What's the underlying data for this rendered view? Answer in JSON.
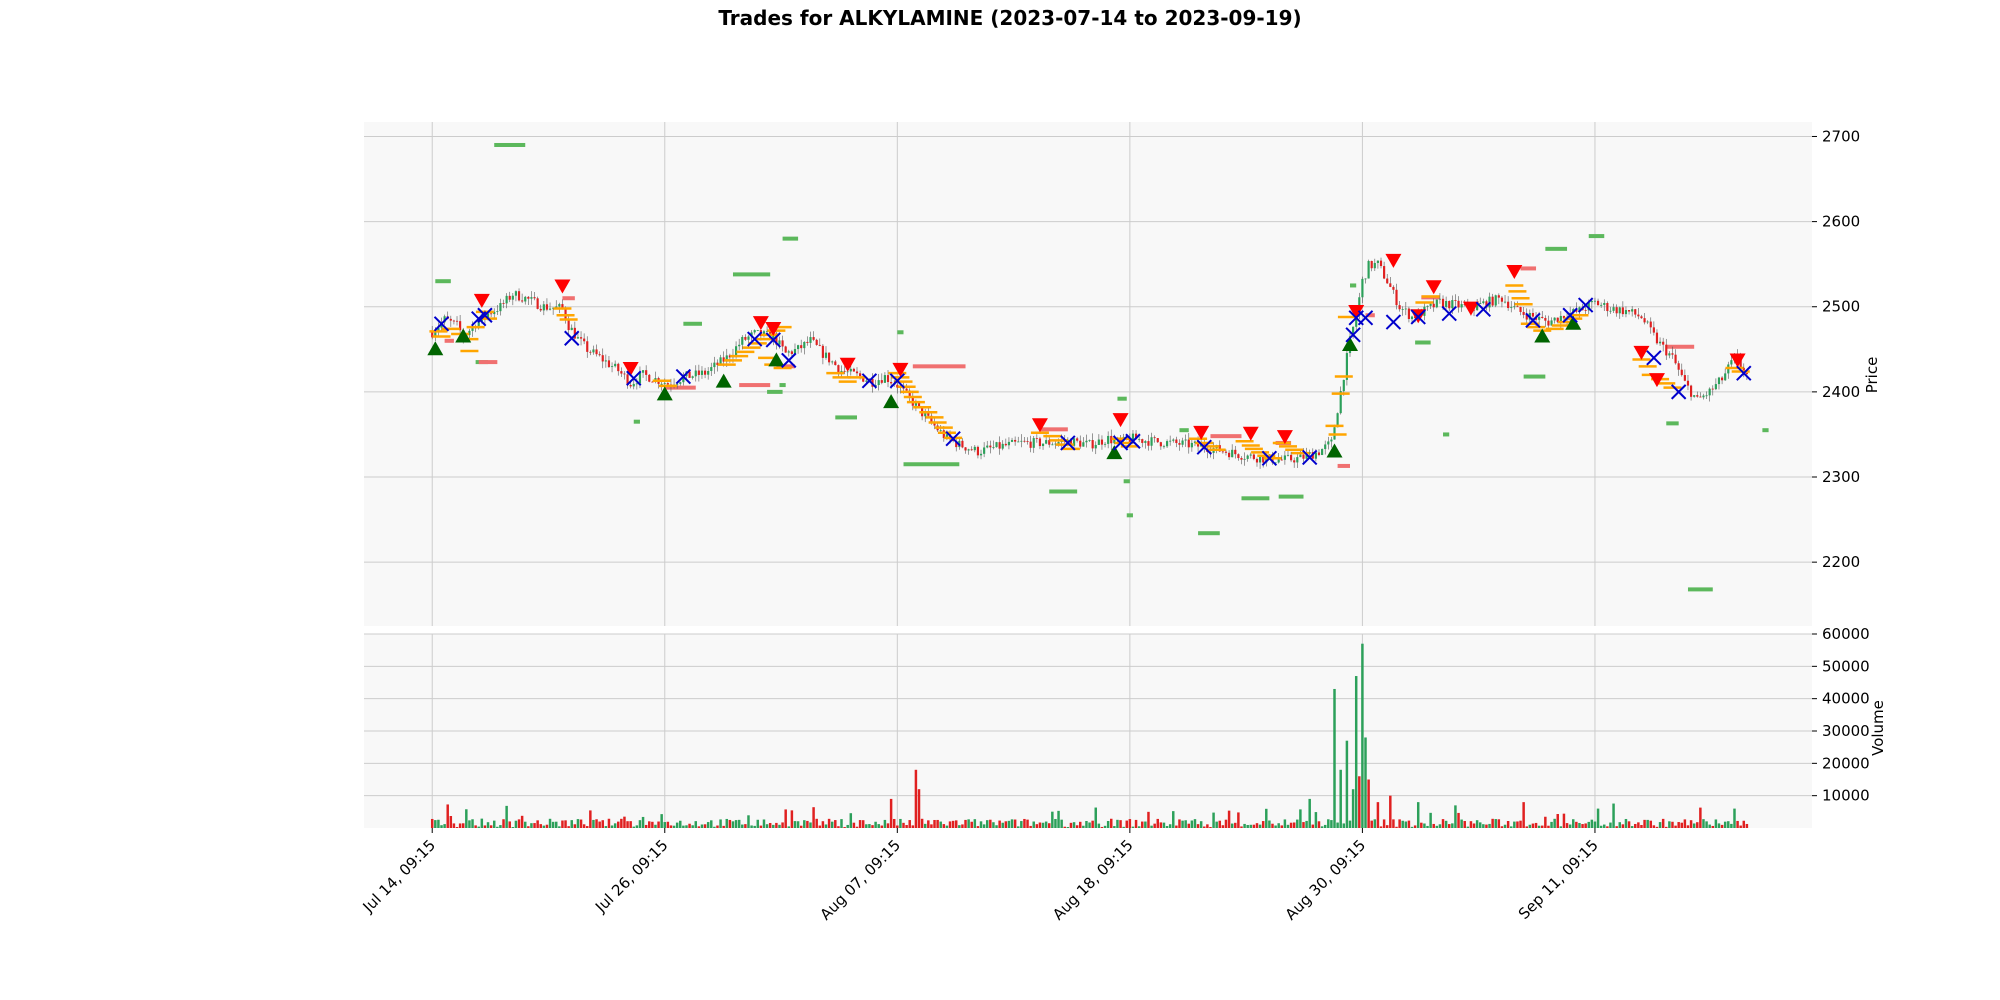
{
  "chart_data": {
    "type": "candlestick",
    "title": "Trades for ALKYLAMINE (2023-07-14 to 2023-09-19)",
    "colors": {
      "up": "#2ca05a",
      "down": "#e02020",
      "buy": "#006400",
      "sell": "#ff0000",
      "exit": "#0000cc",
      "level": "#ffa500",
      "support": "#5cb85c",
      "resistance": "#f07070",
      "panel_bg": "#f8f8f8",
      "grid": "#cccccc"
    },
    "price_panel": {
      "ylabel": "Price",
      "ylim": [
        2125,
        2717
      ],
      "yticks": [
        2200,
        2300,
        2400,
        2500,
        2600,
        2700
      ]
    },
    "volume_panel": {
      "ylabel": "Volume",
      "ylim": [
        0,
        60000
      ],
      "yticks": [
        10000,
        20000,
        30000,
        40000,
        50000,
        60000
      ]
    },
    "x_axis": {
      "ylabel_note": "",
      "ticks": [
        {
          "bar": 0,
          "label": "Jul 14, 09:15"
        },
        {
          "bar": 75,
          "label": "Jul 26, 09:15"
        },
        {
          "bar": 150,
          "label": "Aug 07, 09:15"
        },
        {
          "bar": 225,
          "label": "Aug 18, 09:15"
        },
        {
          "bar": 300,
          "label": "Aug 30, 09:15"
        },
        {
          "bar": 375,
          "label": "Sep 11, 09:15"
        }
      ],
      "n_bars": 425,
      "xlim": [
        -22,
        445
      ]
    },
    "price_path": [
      [
        0,
        2470
      ],
      [
        4,
        2485
      ],
      [
        8,
        2478
      ],
      [
        10,
        2465
      ],
      [
        14,
        2480
      ],
      [
        18,
        2492
      ],
      [
        22,
        2500
      ],
      [
        26,
        2515
      ],
      [
        30,
        2510
      ],
      [
        36,
        2500
      ],
      [
        42,
        2498
      ],
      [
        44,
        2478
      ],
      [
        47,
        2462
      ],
      [
        50,
        2450
      ],
      [
        55,
        2438
      ],
      [
        60,
        2425
      ],
      [
        64,
        2410
      ],
      [
        68,
        2420
      ],
      [
        72,
        2415
      ],
      [
        76,
        2410
      ],
      [
        82,
        2418
      ],
      [
        88,
        2422
      ],
      [
        95,
        2440
      ],
      [
        100,
        2460
      ],
      [
        104,
        2468
      ],
      [
        110,
        2465
      ],
      [
        114,
        2445
      ],
      [
        118,
        2450
      ],
      [
        122,
        2460
      ],
      [
        126,
        2445
      ],
      [
        132,
        2425
      ],
      [
        138,
        2418
      ],
      [
        142,
        2412
      ],
      [
        146,
        2418
      ],
      [
        150,
        2408
      ],
      [
        154,
        2392
      ],
      [
        158,
        2375
      ],
      [
        162,
        2360
      ],
      [
        166,
        2345
      ],
      [
        170,
        2338
      ],
      [
        176,
        2330
      ],
      [
        182,
        2335
      ],
      [
        190,
        2340
      ],
      [
        198,
        2340
      ],
      [
        206,
        2342
      ],
      [
        212,
        2338
      ],
      [
        218,
        2345
      ],
      [
        222,
        2340
      ],
      [
        226,
        2345
      ],
      [
        232,
        2342
      ],
      [
        238,
        2340
      ],
      [
        244,
        2338
      ],
      [
        250,
        2335
      ],
      [
        256,
        2330
      ],
      [
        262,
        2325
      ],
      [
        268,
        2322
      ],
      [
        274,
        2320
      ],
      [
        280,
        2322
      ],
      [
        286,
        2330
      ],
      [
        290,
        2340
      ],
      [
        292,
        2380
      ],
      [
        294,
        2420
      ],
      [
        296,
        2460
      ],
      [
        298,
        2490
      ],
      [
        300,
        2530
      ],
      [
        302,
        2548
      ],
      [
        305,
        2550
      ],
      [
        308,
        2530
      ],
      [
        312,
        2500
      ],
      [
        316,
        2488
      ],
      [
        320,
        2495
      ],
      [
        325,
        2505
      ],
      [
        330,
        2502
      ],
      [
        335,
        2498
      ],
      [
        340,
        2505
      ],
      [
        345,
        2510
      ],
      [
        350,
        2495
      ],
      [
        355,
        2488
      ],
      [
        360,
        2482
      ],
      [
        365,
        2490
      ],
      [
        370,
        2495
      ],
      [
        375,
        2505
      ],
      [
        380,
        2498
      ],
      [
        385,
        2495
      ],
      [
        390,
        2488
      ],
      [
        395,
        2460
      ],
      [
        400,
        2440
      ],
      [
        404,
        2410
      ],
      [
        408,
        2390
      ],
      [
        412,
        2400
      ],
      [
        416,
        2415
      ],
      [
        420,
        2440
      ],
      [
        424,
        2420
      ]
    ],
    "volume_spikes": [
      [
        148,
        9000,
        "down"
      ],
      [
        156,
        18000,
        "down"
      ],
      [
        157,
        12000,
        "down"
      ],
      [
        231,
        5000,
        "down"
      ],
      [
        283,
        9000,
        "up"
      ],
      [
        291,
        43000,
        "up"
      ],
      [
        293,
        18000,
        "up"
      ],
      [
        295,
        27000,
        "up"
      ],
      [
        297,
        12000,
        "up"
      ],
      [
        298,
        47000,
        "up"
      ],
      [
        299,
        16000,
        "down"
      ],
      [
        300,
        57000,
        "up"
      ],
      [
        301,
        28000,
        "up"
      ],
      [
        302,
        15000,
        "down"
      ],
      [
        305,
        8000,
        "down"
      ],
      [
        309,
        10000,
        "down"
      ],
      [
        318,
        8000,
        "up"
      ],
      [
        330,
        7000,
        "up"
      ],
      [
        352,
        8000,
        "down"
      ],
      [
        376,
        6000,
        "up"
      ],
      [
        420,
        6000,
        "up"
      ]
    ],
    "buy_markers": [
      [
        1,
        2450
      ],
      [
        10,
        2465
      ],
      [
        75,
        2397
      ],
      [
        94,
        2412
      ],
      [
        111,
        2437
      ],
      [
        148,
        2388
      ],
      [
        220,
        2328
      ],
      [
        291,
        2330
      ],
      [
        296,
        2455
      ],
      [
        358,
        2465
      ],
      [
        368,
        2480
      ]
    ],
    "sell_markers": [
      [
        16,
        2508
      ],
      [
        42,
        2525
      ],
      [
        64,
        2428
      ],
      [
        106,
        2482
      ],
      [
        110,
        2475
      ],
      [
        134,
        2433
      ],
      [
        151,
        2427
      ],
      [
        196,
        2362
      ],
      [
        222,
        2368
      ],
      [
        248,
        2353
      ],
      [
        264,
        2352
      ],
      [
        275,
        2348
      ],
      [
        298,
        2495
      ],
      [
        310,
        2555
      ],
      [
        318,
        2490
      ],
      [
        323,
        2524
      ],
      [
        335,
        2499
      ],
      [
        349,
        2542
      ],
      [
        390,
        2447
      ],
      [
        395,
        2415
      ],
      [
        421,
        2438
      ]
    ],
    "exit_markers": [
      [
        3,
        2480
      ],
      [
        15,
        2486
      ],
      [
        17,
        2490
      ],
      [
        45,
        2463
      ],
      [
        65,
        2416
      ],
      [
        81,
        2418
      ],
      [
        104,
        2462
      ],
      [
        110,
        2461
      ],
      [
        115,
        2437
      ],
      [
        141,
        2413
      ],
      [
        150,
        2413
      ],
      [
        168,
        2345
      ],
      [
        205,
        2340
      ],
      [
        222,
        2340
      ],
      [
        226,
        2342
      ],
      [
        249,
        2335
      ],
      [
        270,
        2322
      ],
      [
        283,
        2323
      ],
      [
        297,
        2467
      ],
      [
        298,
        2487
      ],
      [
        301,
        2487
      ],
      [
        310,
        2482
      ],
      [
        318,
        2488
      ],
      [
        328,
        2492
      ],
      [
        339,
        2497
      ],
      [
        355,
        2484
      ],
      [
        367,
        2490
      ],
      [
        372,
        2502
      ],
      [
        394,
        2440
      ],
      [
        402,
        2400
      ],
      [
        423,
        2422
      ]
    ],
    "level_dashes": [
      [
        2,
        2471
      ],
      [
        3,
        2465
      ],
      [
        6,
        2474
      ],
      [
        9,
        2468
      ],
      [
        12,
        2462
      ],
      [
        12,
        2448
      ],
      [
        14,
        2476
      ],
      [
        17,
        2494
      ],
      [
        18,
        2486
      ],
      [
        42,
        2498
      ],
      [
        43,
        2490
      ],
      [
        44,
        2485
      ],
      [
        74,
        2413
      ],
      [
        76,
        2407
      ],
      [
        95,
        2432
      ],
      [
        97,
        2437
      ],
      [
        99,
        2442
      ],
      [
        101,
        2447
      ],
      [
        103,
        2452
      ],
      [
        105,
        2457
      ],
      [
        107,
        2462
      ],
      [
        109,
        2467
      ],
      [
        111,
        2472
      ],
      [
        113,
        2476
      ],
      [
        108,
        2440
      ],
      [
        110,
        2432
      ],
      [
        113,
        2428
      ],
      [
        130,
        2422
      ],
      [
        132,
        2417
      ],
      [
        134,
        2412
      ],
      [
        137,
        2417
      ],
      [
        150,
        2422
      ],
      [
        151,
        2417
      ],
      [
        152,
        2412
      ],
      [
        153,
        2406
      ],
      [
        154,
        2400
      ],
      [
        155,
        2394
      ],
      [
        156,
        2388
      ],
      [
        158,
        2382
      ],
      [
        160,
        2376
      ],
      [
        162,
        2370
      ],
      [
        163,
        2364
      ],
      [
        165,
        2358
      ],
      [
        166,
        2352
      ],
      [
        168,
        2346
      ],
      [
        196,
        2352
      ],
      [
        200,
        2348
      ],
      [
        202,
        2343
      ],
      [
        204,
        2338
      ],
      [
        206,
        2333
      ],
      [
        222,
        2345
      ],
      [
        223,
        2340
      ],
      [
        225,
        2336
      ],
      [
        247,
        2345
      ],
      [
        249,
        2340
      ],
      [
        251,
        2336
      ],
      [
        253,
        2332
      ],
      [
        262,
        2342
      ],
      [
        264,
        2337
      ],
      [
        265,
        2333
      ],
      [
        267,
        2329
      ],
      [
        269,
        2325
      ],
      [
        271,
        2322
      ],
      [
        274,
        2340
      ],
      [
        276,
        2336
      ],
      [
        278,
        2332
      ],
      [
        280,
        2328
      ],
      [
        291,
        2360
      ],
      [
        292,
        2350
      ],
      [
        293,
        2398
      ],
      [
        294,
        2418
      ],
      [
        295,
        2488
      ],
      [
        320,
        2505
      ],
      [
        322,
        2512
      ],
      [
        349,
        2525
      ],
      [
        350,
        2518
      ],
      [
        351,
        2510
      ],
      [
        352,
        2503
      ],
      [
        354,
        2480
      ],
      [
        356,
        2476
      ],
      [
        358,
        2472
      ],
      [
        362,
        2474
      ],
      [
        364,
        2478
      ],
      [
        366,
        2482
      ],
      [
        368,
        2486
      ],
      [
        370,
        2490
      ],
      [
        390,
        2438
      ],
      [
        392,
        2430
      ],
      [
        393,
        2420
      ],
      [
        396,
        2415
      ],
      [
        398,
        2410
      ],
      [
        400,
        2405
      ],
      [
        420,
        2428
      ],
      [
        422,
        2424
      ]
    ],
    "green_bars": [
      [
        20,
        10,
        2690
      ],
      [
        1,
        5,
        2530
      ],
      [
        14,
        4,
        2435
      ],
      [
        81,
        6,
        2480
      ],
      [
        97,
        12,
        2538
      ],
      [
        113,
        5,
        2580
      ],
      [
        108,
        5,
        2400
      ],
      [
        130,
        7,
        2370
      ],
      [
        150,
        2,
        2470
      ],
      [
        152,
        18,
        2315
      ],
      [
        199,
        9,
        2283
      ],
      [
        221,
        3,
        2392
      ],
      [
        224,
        2,
        2255
      ],
      [
        223,
        2,
        2295
      ],
      [
        247,
        7,
        2234
      ],
      [
        261,
        9,
        2275
      ],
      [
        273,
        8,
        2277
      ],
      [
        296,
        2,
        2525
      ],
      [
        317,
        5,
        2458
      ],
      [
        326,
        2,
        2350
      ],
      [
        352,
        7,
        2418
      ],
      [
        359,
        7,
        2568
      ],
      [
        373,
        5,
        2583
      ],
      [
        398,
        4,
        2363
      ],
      [
        405,
        8,
        2168
      ],
      [
        429,
        2,
        2355
      ],
      [
        65,
        2,
        2365
      ],
      [
        112,
        2,
        2408
      ],
      [
        241,
        3,
        2355
      ]
    ],
    "red_bars": [
      [
        15,
        6,
        2435
      ],
      [
        42,
        4,
        2510
      ],
      [
        75,
        10,
        2405
      ],
      [
        99,
        10,
        2408
      ],
      [
        111,
        6,
        2430
      ],
      [
        155,
        17,
        2430
      ],
      [
        196,
        9,
        2356
      ],
      [
        251,
        10,
        2348
      ],
      [
        272,
        5,
        2340
      ],
      [
        292,
        4,
        2313
      ],
      [
        301,
        3,
        2490
      ],
      [
        319,
        6,
        2511
      ],
      [
        351,
        5,
        2545
      ],
      [
        398,
        9,
        2453
      ],
      [
        4,
        3,
        2460
      ]
    ]
  }
}
